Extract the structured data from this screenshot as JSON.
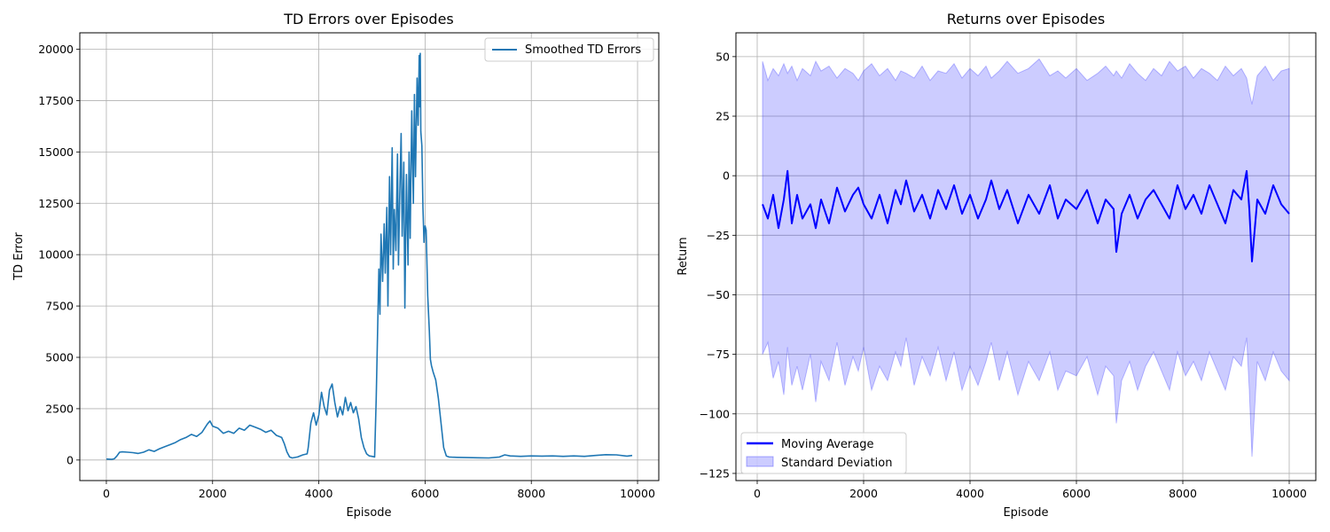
{
  "chart_data": [
    {
      "type": "line",
      "title": "TD Errors over Episodes",
      "xlabel": "Episode",
      "ylabel": "TD Error",
      "xlim": [
        -500,
        10400
      ],
      "ylim": [
        -1000,
        20800
      ],
      "xticks": [
        0,
        2000,
        4000,
        6000,
        8000,
        10000
      ],
      "yticks": [
        0,
        2500,
        5000,
        7500,
        10000,
        12500,
        15000,
        17500,
        20000
      ],
      "grid": true,
      "legend": "top-right",
      "series": [
        {
          "name": "Smoothed TD Errors",
          "color": "#1f77b4",
          "x": [
            0,
            100,
            150,
            200,
            250,
            300,
            400,
            500,
            600,
            700,
            800,
            900,
            1000,
            1100,
            1200,
            1300,
            1400,
            1500,
            1600,
            1700,
            1800,
            1900,
            1950,
            2000,
            2100,
            2200,
            2300,
            2400,
            2500,
            2600,
            2700,
            2800,
            2900,
            3000,
            3100,
            3200,
            3300,
            3350,
            3400,
            3450,
            3500,
            3600,
            3700,
            3780,
            3800,
            3850,
            3900,
            3950,
            4000,
            4050,
            4100,
            4150,
            4200,
            4250,
            4300,
            4350,
            4400,
            4450,
            4500,
            4550,
            4600,
            4650,
            4700,
            4750,
            4800,
            4850,
            4900,
            4950,
            5000,
            5050,
            5080,
            5100,
            5130,
            5150,
            5170,
            5200,
            5230,
            5250,
            5280,
            5300,
            5330,
            5350,
            5380,
            5400,
            5420,
            5450,
            5480,
            5500,
            5520,
            5550,
            5570,
            5600,
            5620,
            5650,
            5680,
            5700,
            5720,
            5750,
            5780,
            5800,
            5820,
            5850,
            5870,
            5890,
            5900,
            5910,
            5920,
            5940,
            5960,
            5980,
            6000,
            6020,
            6050,
            6080,
            6100,
            6120,
            6150,
            6200,
            6250,
            6300,
            6350,
            6400,
            6450,
            6500,
            6600,
            6800,
            7000,
            7200,
            7400,
            7500,
            7600,
            7800,
            8000,
            8200,
            8400,
            8600,
            8800,
            9000,
            9200,
            9400,
            9600,
            9800,
            9900
          ],
          "y": [
            50,
            30,
            60,
            200,
            380,
            400,
            380,
            360,
            320,
            380,
            500,
            420,
            550,
            650,
            750,
            850,
            1000,
            1100,
            1250,
            1150,
            1350,
            1750,
            1900,
            1650,
            1550,
            1300,
            1400,
            1300,
            1550,
            1450,
            1700,
            1600,
            1500,
            1350,
            1450,
            1200,
            1100,
            800,
            400,
            150,
            100,
            150,
            250,
            300,
            600,
            1800,
            2300,
            1700,
            2200,
            3300,
            2600,
            2200,
            3400,
            3700,
            2800,
            2100,
            2600,
            2200,
            3050,
            2400,
            2800,
            2300,
            2600,
            2000,
            1100,
            600,
            300,
            200,
            180,
            150,
            3000,
            5500,
            9300,
            7100,
            11000,
            8700,
            11500,
            9100,
            12300,
            7500,
            13800,
            10000,
            15200,
            9300,
            12200,
            10200,
            14900,
            9500,
            12400,
            15900,
            10900,
            14500,
            7400,
            13900,
            9500,
            15000,
            10800,
            17000,
            12500,
            17800,
            13800,
            18600,
            16300,
            19700,
            17200,
            19800,
            16000,
            15300,
            12300,
            10600,
            11400,
            11200,
            8000,
            6300,
            4900,
            4600,
            4300,
            3900,
            3000,
            1800,
            600,
            200,
            150,
            140,
            130,
            120,
            110,
            100,
            150,
            250,
            200,
            180,
            200,
            190,
            200,
            180,
            200,
            180,
            220,
            260,
            250,
            190,
            220
          ]
        }
      ]
    },
    {
      "type": "area",
      "title": "Returns over Episodes",
      "xlabel": "Episode",
      "ylabel": "Return",
      "xlim": [
        -400,
        10500
      ],
      "ylim": [
        -128,
        60
      ],
      "xticks": [
        0,
        2000,
        4000,
        6000,
        8000,
        10000
      ],
      "yticks": [
        -125,
        -100,
        -75,
        -50,
        -25,
        0,
        25,
        50
      ],
      "grid": true,
      "legend": "bottom-left",
      "series": [
        {
          "name": "Moving Average",
          "color": "#0000ff",
          "x": [
            100,
            200,
            300,
            400,
            500,
            570,
            650,
            750,
            850,
            1000,
            1100,
            1200,
            1350,
            1500,
            1650,
            1800,
            1900,
            2000,
            2150,
            2300,
            2450,
            2600,
            2700,
            2800,
            2950,
            3100,
            3250,
            3400,
            3550,
            3700,
            3850,
            4000,
            4150,
            4300,
            4400,
            4550,
            4700,
            4900,
            5100,
            5300,
            5500,
            5650,
            5800,
            6000,
            6200,
            6400,
            6550,
            6700,
            6750,
            6850,
            7000,
            7150,
            7300,
            7450,
            7600,
            7750,
            7900,
            8050,
            8200,
            8350,
            8500,
            8650,
            8800,
            8950,
            9100,
            9200,
            9250,
            9300,
            9400,
            9550,
            9700,
            9850,
            10000
          ],
          "y": [
            -12,
            -18,
            -8,
            -22,
            -10,
            2,
            -20,
            -8,
            -18,
            -12,
            -22,
            -10,
            -20,
            -5,
            -15,
            -8,
            -5,
            -12,
            -18,
            -8,
            -20,
            -6,
            -12,
            -2,
            -15,
            -8,
            -18,
            -6,
            -14,
            -4,
            -16,
            -8,
            -18,
            -10,
            -2,
            -14,
            -6,
            -20,
            -8,
            -16,
            -4,
            -18,
            -10,
            -14,
            -6,
            -20,
            -10,
            -14,
            -32,
            -16,
            -8,
            -18,
            -10,
            -6,
            -12,
            -18,
            -4,
            -14,
            -8,
            -16,
            -4,
            -12,
            -20,
            -6,
            -10,
            2,
            -14,
            -36,
            -10,
            -16,
            -4,
            -12,
            -16
          ],
          "std_upper": [
            48,
            40,
            45,
            42,
            47,
            43,
            46,
            40,
            45,
            42,
            48,
            44,
            46,
            41,
            45,
            43,
            40,
            44,
            47,
            42,
            45,
            40,
            44,
            43,
            41,
            46,
            40,
            44,
            43,
            47,
            41,
            45,
            42,
            46,
            41,
            44,
            48,
            43,
            45,
            49,
            42,
            44,
            41,
            45,
            40,
            43,
            46,
            42,
            44,
            41,
            47,
            43,
            40,
            45,
            42,
            48,
            44,
            46,
            41,
            45,
            43,
            40,
            46,
            42,
            45,
            41,
            35,
            30,
            42,
            46,
            40,
            44,
            45
          ],
          "std_lower": [
            -75,
            -70,
            -85,
            -78,
            -92,
            -72,
            -88,
            -80,
            -90,
            -75,
            -95,
            -78,
            -86,
            -70,
            -88,
            -76,
            -82,
            -72,
            -90,
            -80,
            -86,
            -74,
            -80,
            -68,
            -88,
            -76,
            -84,
            -72,
            -86,
            -74,
            -90,
            -80,
            -88,
            -78,
            -70,
            -86,
            -74,
            -92,
            -78,
            -86,
            -74,
            -90,
            -82,
            -84,
            -76,
            -92,
            -80,
            -84,
            -104,
            -86,
            -78,
            -90,
            -80,
            -74,
            -82,
            -90,
            -74,
            -84,
            -78,
            -86,
            -74,
            -82,
            -90,
            -76,
            -80,
            -68,
            -90,
            -118,
            -78,
            -86,
            -74,
            -82,
            -86
          ]
        }
      ],
      "band_name": "Standard Deviation",
      "band_color": "#0000ff"
    }
  ]
}
